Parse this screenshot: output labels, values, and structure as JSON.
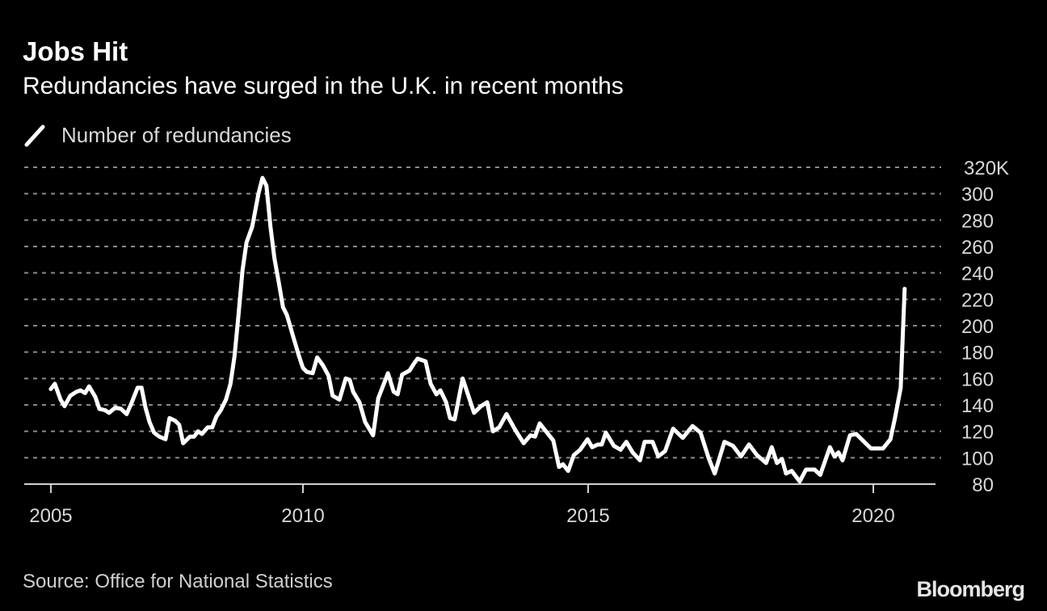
{
  "header": {
    "title": "Jobs Hit",
    "subtitle": "Redundancies have surged in the U.K. in recent months"
  },
  "footer": {
    "source": "Source: Office for National Statistics",
    "logo": "Bloomberg"
  },
  "colors": {
    "background": "#000000",
    "line": "#ffffff",
    "grid": "#8a8a8a",
    "text": "#d8d8d8"
  },
  "chart_data": {
    "type": "line",
    "title": "Jobs Hit",
    "subtitle": "Redundancies have surged in the U.K. in recent months",
    "xlabel": "",
    "ylabel": "",
    "legend": {
      "placement": "top-left",
      "entries": [
        "Number of redundancies"
      ]
    },
    "grid": true,
    "y_axis_side": "right",
    "ylim": [
      80,
      320
    ],
    "y_ticks": [
      80,
      100,
      120,
      140,
      160,
      180,
      200,
      220,
      240,
      260,
      280,
      300,
      320
    ],
    "y_tick_labels": [
      "80",
      "100",
      "120",
      "140",
      "160",
      "180",
      "200",
      "220",
      "240",
      "260",
      "280",
      "300",
      "320K"
    ],
    "xlim": [
      2005.2,
      2021.1
    ],
    "x_ticks": [
      {
        "value": 2005.58,
        "label": "2005"
      },
      {
        "value": 2010,
        "label": "2010"
      },
      {
        "value": 2015,
        "label": "2015"
      },
      {
        "value": 2020,
        "label": "2020"
      }
    ],
    "series": [
      {
        "name": "Number of redundancies",
        "x": [
          2005.58,
          2005.65,
          2005.75,
          2005.82,
          2005.92,
          2006.03,
          2006.1,
          2006.18,
          2006.25,
          2006.36,
          2006.43,
          2006.53,
          2006.6,
          2006.71,
          2006.81,
          2006.91,
          2007.0,
          2007.1,
          2007.17,
          2007.24,
          2007.31,
          2007.39,
          2007.48,
          2007.59,
          2007.66,
          2007.76,
          2007.83,
          2007.9,
          2008.02,
          2008.09,
          2008.16,
          2008.23,
          2008.33,
          2008.41,
          2008.48,
          2008.56,
          2008.65,
          2008.73,
          2008.8,
          2008.87,
          2008.94,
          2009.01,
          2009.11,
          2009.15,
          2009.22,
          2009.29,
          2009.36,
          2009.43,
          2009.5,
          2009.58,
          2009.65,
          2009.72,
          2009.82,
          2009.93,
          2010.0,
          2010.07,
          2010.17,
          2010.25,
          2010.35,
          2010.45,
          2010.52,
          2010.64,
          2010.75,
          2010.82,
          2010.88,
          2010.99,
          2011.09,
          2011.23,
          2011.32,
          2011.49,
          2011.59,
          2011.66,
          2011.74,
          2011.87,
          2011.94,
          2012.01,
          2012.15,
          2012.24,
          2012.34,
          2012.41,
          2012.51,
          2012.58,
          2012.66,
          2012.8,
          2013.0,
          2013.12,
          2013.23,
          2013.33,
          2013.44,
          2013.57,
          2013.71,
          2013.87,
          2013.99,
          2014.07,
          2014.15,
          2014.39,
          2014.49,
          2014.56,
          2014.65,
          2014.75,
          2014.86,
          2014.99,
          2015.07,
          2015.17,
          2015.24,
          2015.31,
          2015.45,
          2015.57,
          2015.67,
          2015.78,
          2015.91,
          2015.99,
          2016.13,
          2016.23,
          2016.35,
          2016.49,
          2016.66,
          2016.83,
          2016.97,
          2017.11,
          2017.22,
          2017.39,
          2017.54,
          2017.68,
          2017.82,
          2017.96,
          2018.12,
          2018.22,
          2018.31,
          2018.4,
          2018.47,
          2018.57,
          2018.71,
          2018.82,
          2018.97,
          2019.07,
          2019.24,
          2019.32,
          2019.39,
          2019.46,
          2019.59,
          2019.7,
          2019.84,
          2019.96,
          2020.17,
          2020.3,
          2020.38,
          2020.48,
          2020.55
        ],
        "y": [
          152,
          156,
          144,
          139,
          147,
          150,
          151,
          149,
          154,
          146,
          137,
          136,
          134,
          138,
          137,
          133,
          142,
          153,
          153,
          138,
          127,
          119,
          116,
          114,
          130,
          128,
          125,
          111,
          116,
          116,
          120,
          118,
          123,
          123,
          131,
          136,
          144,
          156,
          177,
          208,
          242,
          263,
          275,
          284,
          300,
          312,
          306,
          275,
          251,
          232,
          214,
          208,
          193,
          177,
          168,
          165,
          164,
          176,
          170,
          162,
          147,
          144,
          160,
          159,
          150,
          142,
          127,
          117,
          145,
          164,
          150,
          148,
          163,
          166,
          171,
          175,
          173,
          156,
          148,
          151,
          142,
          130,
          129,
          160,
          134,
          139,
          142,
          120,
          123,
          133,
          122,
          111,
          117,
          116,
          126,
          113,
          93,
          95,
          90,
          102,
          106,
          114,
          108,
          110,
          110,
          119,
          109,
          106,
          112,
          104,
          98,
          112,
          112,
          101,
          105,
          122,
          115,
          124,
          119,
          100,
          88,
          112,
          109,
          101,
          110,
          102,
          96,
          108,
          96,
          99,
          88,
          90,
          82,
          91,
          91,
          87,
          108,
          101,
          104,
          98,
          117,
          118,
          112,
          107,
          107,
          114,
          130,
          153,
          228
        ]
      }
    ]
  }
}
